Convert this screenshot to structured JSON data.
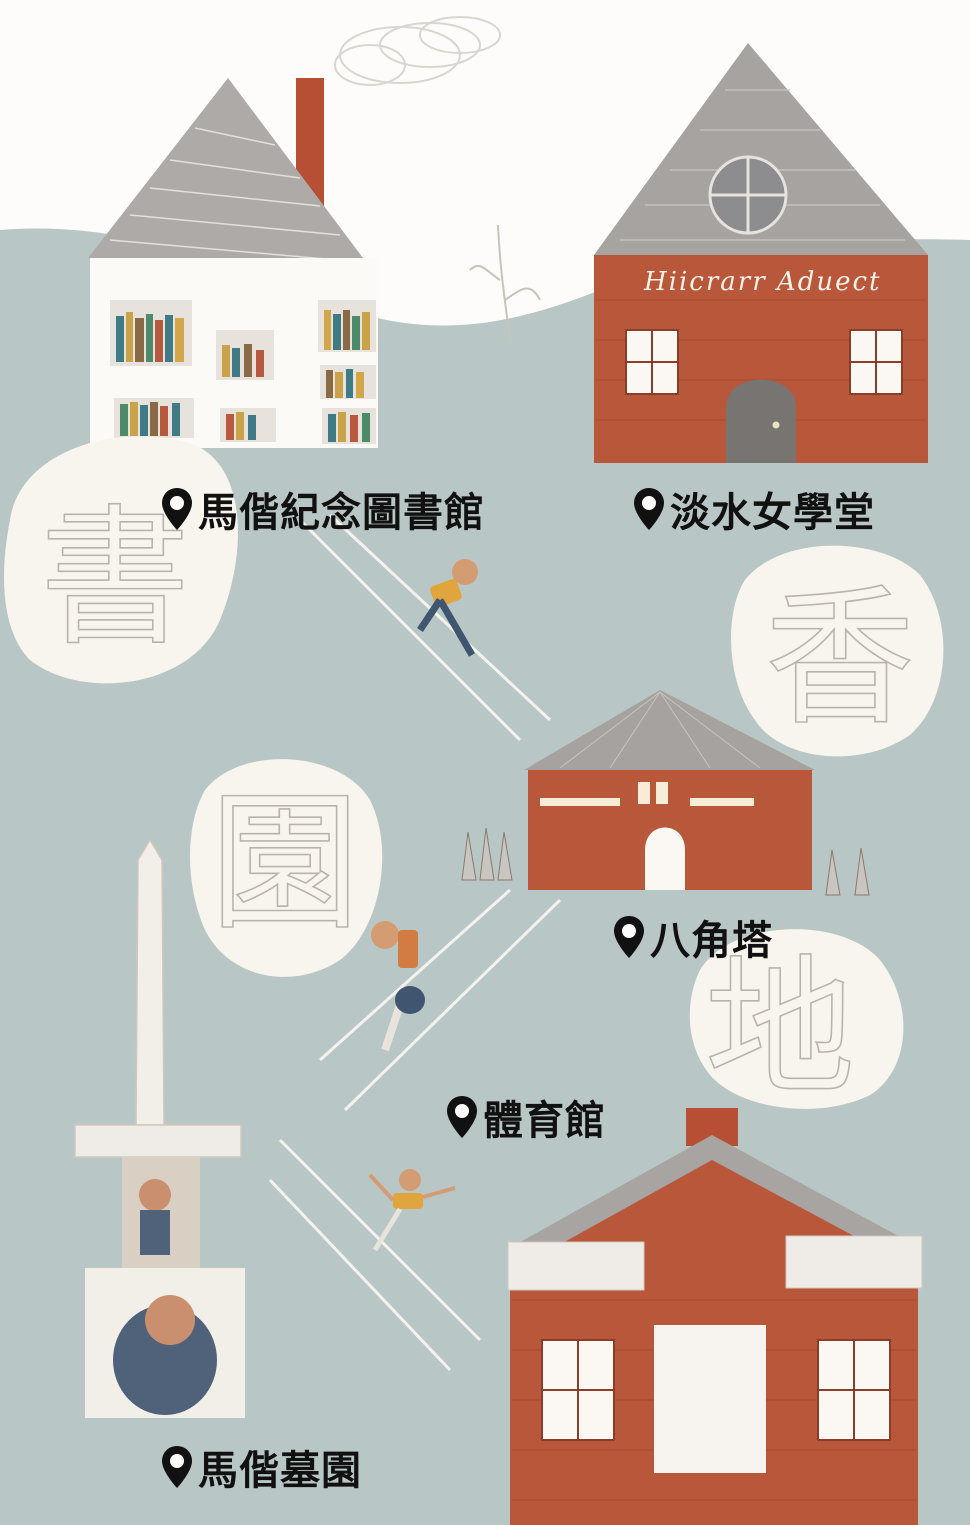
{
  "map": {
    "locations": [
      {
        "id": "library",
        "name": "馬偕紀念圖書館"
      },
      {
        "id": "girls_school",
        "name": "淡水女學堂"
      },
      {
        "id": "octagon_tower",
        "name": "八角塔"
      },
      {
        "id": "gymnasium",
        "name": "體育館"
      },
      {
        "id": "cemetery",
        "name": "馬偕墓園"
      }
    ],
    "building_sign": "Hiicrarr  Aduect",
    "bubble_characters": [
      "書",
      "香",
      "園",
      "地"
    ]
  },
  "colors": {
    "sky": "#fdfcfa",
    "hill": "#b8c7c5",
    "brick": "#b9573a",
    "roof": "#a7a4a2",
    "bubble": "#f8f4ee",
    "pin": "#111111"
  }
}
